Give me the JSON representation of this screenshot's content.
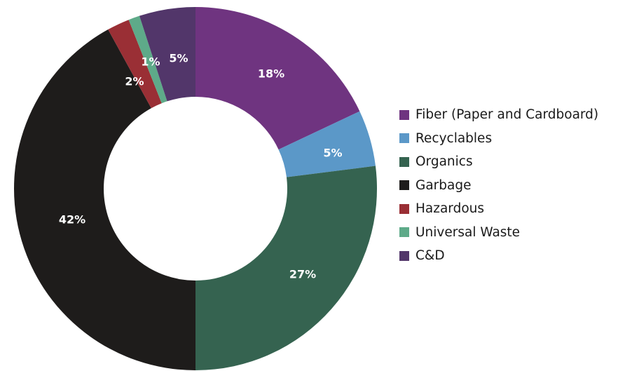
{
  "chart_data": {
    "type": "pie",
    "title": "",
    "legend_position": "right",
    "series": [
      {
        "name": "Fiber (Paper and Cardboard)",
        "value": 18,
        "label": "18%",
        "color": "#6f3480"
      },
      {
        "name": "Recyclables",
        "value": 5,
        "label": "5%",
        "color": "#5b98c8"
      },
      {
        "name": "Organics",
        "value": 27,
        "label": "27%",
        "color": "#356350"
      },
      {
        "name": "Garbage",
        "value": 42,
        "label": "42%",
        "color": "#1e1c1b"
      },
      {
        "name": "Hazardous",
        "value": 2,
        "label": "2%",
        "color": "#9a2f35"
      },
      {
        "name": "Universal Waste",
        "value": 1,
        "label": "1%",
        "color": "#5eaa89"
      },
      {
        "name": "C&D",
        "value": 5,
        "label": "5%",
        "color": "#52366a"
      }
    ]
  }
}
